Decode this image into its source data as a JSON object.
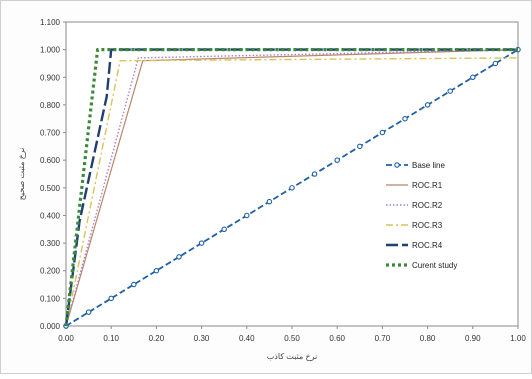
{
  "chart_data": {
    "type": "line",
    "title": "",
    "xlabel": "نرخ مثبت کاذب",
    "ylabel": "نرخ مثبت صحیح",
    "xlim": [
      0,
      1
    ],
    "ylim": [
      0,
      1.1
    ],
    "x_ticks": [
      "0.00",
      "0.10",
      "0.20",
      "0.30",
      "0.40",
      "0.50",
      "0.60",
      "0.70",
      "0.80",
      "0.90",
      "1.00"
    ],
    "y_ticks": [
      "0.000",
      "0.100",
      "0.200",
      "0.300",
      "0.400",
      "0.500",
      "0.600",
      "0.700",
      "0.800",
      "0.900",
      "1.000",
      "1.100"
    ],
    "grid": false,
    "legend_position": "right-middle",
    "series": [
      {
        "name": "Base line",
        "color": "#1f5fa8",
        "style": "line-with-markers",
        "x": [
          0,
          0.05,
          0.1,
          0.15,
          0.2,
          0.25,
          0.3,
          0.35,
          0.4,
          0.45,
          0.5,
          0.55,
          0.6,
          0.65,
          0.7,
          0.75,
          0.8,
          0.85,
          0.9,
          0.95,
          1.0
        ],
        "y": [
          0,
          0.05,
          0.1,
          0.15,
          0.2,
          0.25,
          0.3,
          0.35,
          0.4,
          0.45,
          0.5,
          0.55,
          0.6,
          0.65,
          0.7,
          0.75,
          0.8,
          0.85,
          0.9,
          0.95,
          1.0
        ]
      },
      {
        "name": "ROC.R1",
        "color": "#b8876a",
        "style": "solid",
        "x": [
          0,
          0.17,
          1.0
        ],
        "y": [
          0,
          0.96,
          1.0
        ]
      },
      {
        "name": "ROC.R2",
        "color": "#a87fd0",
        "style": "dotted",
        "x": [
          0,
          0.16,
          1.0
        ],
        "y": [
          0,
          0.97,
          1.0
        ]
      },
      {
        "name": "ROC.R3",
        "color": "#d7c35a",
        "style": "dash-dot",
        "x": [
          0,
          0.12,
          1.0
        ],
        "y": [
          0,
          0.96,
          0.97
        ]
      },
      {
        "name": "ROC.R4",
        "color": "#1f3f73",
        "style": "long-dash",
        "x": [
          0,
          0.03,
          0.09,
          0.1,
          1.0
        ],
        "y": [
          0,
          0.38,
          0.83,
          1.0,
          1.0
        ]
      },
      {
        "name": "Curent study",
        "color": "#3a8a3a",
        "style": "thick-dotted",
        "x": [
          0,
          0.07,
          1.0
        ],
        "y": [
          0,
          1.0,
          1.0
        ]
      }
    ]
  }
}
